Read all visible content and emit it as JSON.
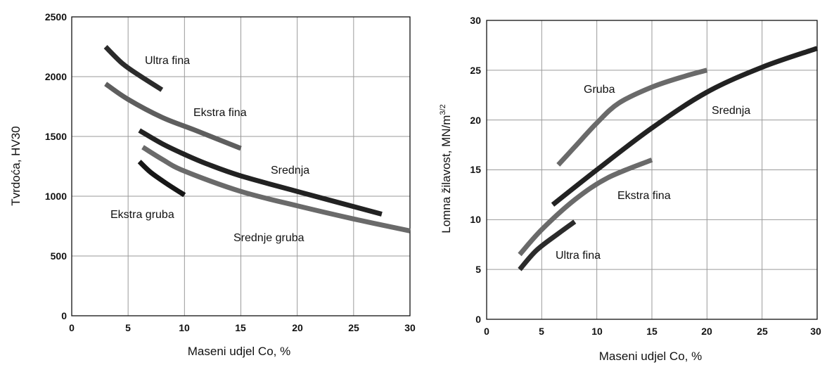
{
  "chart_data": [
    {
      "type": "line",
      "xlabel": "Maseni udjel Co, %",
      "ylabel": "Tvrdoća, HV30",
      "xlim": [
        0,
        30
      ],
      "ylim": [
        0,
        2500
      ],
      "x_ticks": [
        "0",
        "5",
        "10",
        "15",
        "20",
        "25",
        "30"
      ],
      "y_ticks": [
        "0",
        "500",
        "1000",
        "1500",
        "2000",
        "2500"
      ],
      "grid": true,
      "series": [
        {
          "name": "Ultra fina",
          "color": "#2b2b2b",
          "x": [
            3,
            4.5,
            6,
            8
          ],
          "y": [
            2250,
            2110,
            2010,
            1890
          ]
        },
        {
          "name": "Ekstra fina",
          "color": "#5e5e5e",
          "x": [
            3,
            5,
            8,
            11,
            15
          ],
          "y": [
            1940,
            1810,
            1660,
            1550,
            1400
          ]
        },
        {
          "name": "Srednja",
          "color": "#222222",
          "x": [
            6,
            8,
            10,
            12,
            15,
            20,
            27.5
          ],
          "y": [
            1550,
            1440,
            1350,
            1270,
            1170,
            1040,
            850
          ]
        },
        {
          "name": "Srednje gruba",
          "color": "#6a6a6a",
          "x": [
            6.3,
            8,
            10,
            15,
            20,
            25,
            30
          ],
          "y": [
            1410,
            1310,
            1210,
            1040,
            920,
            810,
            710
          ]
        },
        {
          "name": "Ekstra gruba",
          "color": "#161616",
          "x": [
            6,
            7,
            8.5,
            10
          ],
          "y": [
            1290,
            1200,
            1100,
            1010
          ]
        }
      ],
      "annotations": [
        "Ultra fina",
        "Ekstra fina",
        "Srednja",
        "Ekstra gruba",
        "Srednje gruba"
      ]
    },
    {
      "type": "line",
      "xlabel": "Maseni udjel Co, %",
      "ylabel": "Lomna žilavost, MN/m",
      "ylabel_sup": "3/2",
      "xlim": [
        0,
        30
      ],
      "ylim": [
        0,
        30
      ],
      "x_ticks": [
        "0",
        "5",
        "10",
        "15",
        "20",
        "25",
        "30"
      ],
      "y_ticks": [
        "0",
        "5",
        "10",
        "15",
        "20",
        "25",
        "30"
      ],
      "grid": true,
      "series": [
        {
          "name": "Gruba",
          "color": "#6a6a6a",
          "x": [
            6.5,
            8,
            10,
            12,
            15,
            18,
            20
          ],
          "y": [
            15.5,
            17.3,
            19.7,
            21.7,
            23.3,
            24.4,
            25
          ]
        },
        {
          "name": "Srednja",
          "color": "#222222",
          "x": [
            6,
            10,
            15,
            20,
            25,
            30
          ],
          "y": [
            11.5,
            15,
            19.2,
            22.8,
            25.3,
            27.2
          ]
        },
        {
          "name": "Ekstra fina",
          "color": "#6a6a6a",
          "x": [
            3,
            5,
            8,
            11,
            15
          ],
          "y": [
            6.5,
            9,
            12,
            14.2,
            16
          ]
        },
        {
          "name": "Ultra fina",
          "color": "#2b2b2b",
          "x": [
            3,
            4.5,
            6.5,
            8
          ],
          "y": [
            5,
            6.9,
            8.6,
            9.8
          ]
        }
      ],
      "annotations": [
        "Gruba",
        "Srednja",
        "Ekstra fina",
        "Ultra fina"
      ]
    }
  ]
}
